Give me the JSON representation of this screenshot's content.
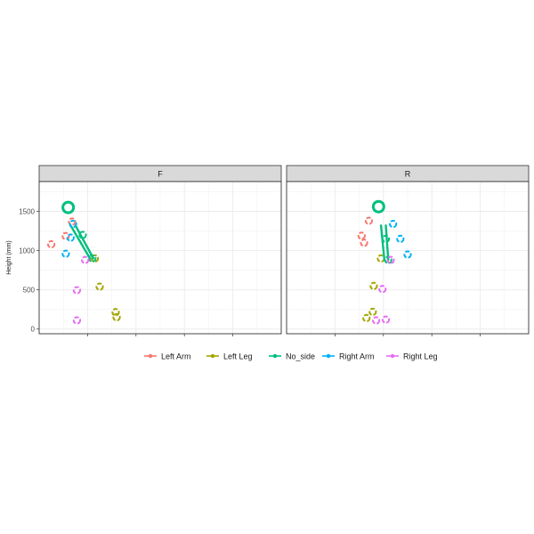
{
  "chart_data": {
    "type": "scatter",
    "ylabel": "Height (mm)",
    "ylim": [
      -60,
      1880
    ],
    "yticks": [
      0,
      500,
      1000,
      1500
    ],
    "xlim": [
      0,
      5
    ],
    "x_tick_labels_visible": false,
    "grid": true,
    "legend_position": "bottom",
    "series_colors": {
      "Left Arm": "#F8766D",
      "Left Leg": "#A3A500",
      "No_side": "#00BF7D",
      "Right Arm": "#00B0F6",
      "Right Leg": "#E76BF3"
    },
    "legend": [
      "Left Arm",
      "Left Leg",
      "No_side",
      "Right Arm",
      "Right Leg"
    ],
    "panels": [
      {
        "label": "F",
        "series": [
          {
            "name": "Left Arm",
            "points": [
              [
                0.25,
                1080
              ],
              [
                0.55,
                1185
              ],
              [
                0.68,
                1370
              ]
            ]
          },
          {
            "name": "Left Leg",
            "points": [
              [
                1.15,
                900
              ],
              [
                1.25,
                540
              ],
              [
                1.58,
                215
              ],
              [
                1.6,
                150
              ]
            ]
          },
          {
            "name": "No_side",
            "points": [
              [
                0.6,
                1550
              ],
              [
                0.9,
                1200
              ],
              [
                1.1,
                900
              ]
            ],
            "segments": [
              [
                [
                  0.65,
                  1320
                ],
                [
                  1.05,
                  900
                ]
              ],
              [
                [
                  0.75,
                  1320
                ],
                [
                  1.12,
                  900
                ]
              ]
            ]
          },
          {
            "name": "Right Arm",
            "points": [
              [
                0.55,
                960
              ],
              [
                0.65,
                1165
              ],
              [
                0.7,
                1340
              ]
            ]
          },
          {
            "name": "Right Leg",
            "points": [
              [
                0.78,
                110
              ],
              [
                0.78,
                495
              ],
              [
                0.95,
                880
              ]
            ]
          }
        ]
      },
      {
        "label": "R",
        "series": [
          {
            "name": "Left Arm",
            "points": [
              [
                1.55,
                1190
              ],
              [
                1.6,
                1100
              ],
              [
                1.7,
                1380
              ]
            ]
          },
          {
            "name": "Left Leg",
            "points": [
              [
                1.8,
                550
              ],
              [
                1.95,
                900
              ],
              [
                1.65,
                140
              ],
              [
                1.78,
                220
              ]
            ]
          },
          {
            "name": "No_side",
            "points": [
              [
                1.9,
                1560
              ],
              [
                2.05,
                1150
              ],
              [
                2.1,
                880
              ]
            ],
            "segments": [
              [
                [
                  1.95,
                  1320
                ],
                [
                  2.02,
                  880
                ]
              ],
              [
                [
                  2.05,
                  1320
                ],
                [
                  2.1,
                  880
                ]
              ]
            ]
          },
          {
            "name": "Right Arm",
            "points": [
              [
                2.2,
                1340
              ],
              [
                2.35,
                1150
              ],
              [
                2.5,
                950
              ]
            ]
          },
          {
            "name": "Right Leg",
            "points": [
              [
                1.85,
                110
              ],
              [
                1.98,
                510
              ],
              [
                2.05,
                120
              ],
              [
                2.15,
                880
              ]
            ]
          }
        ]
      }
    ]
  }
}
